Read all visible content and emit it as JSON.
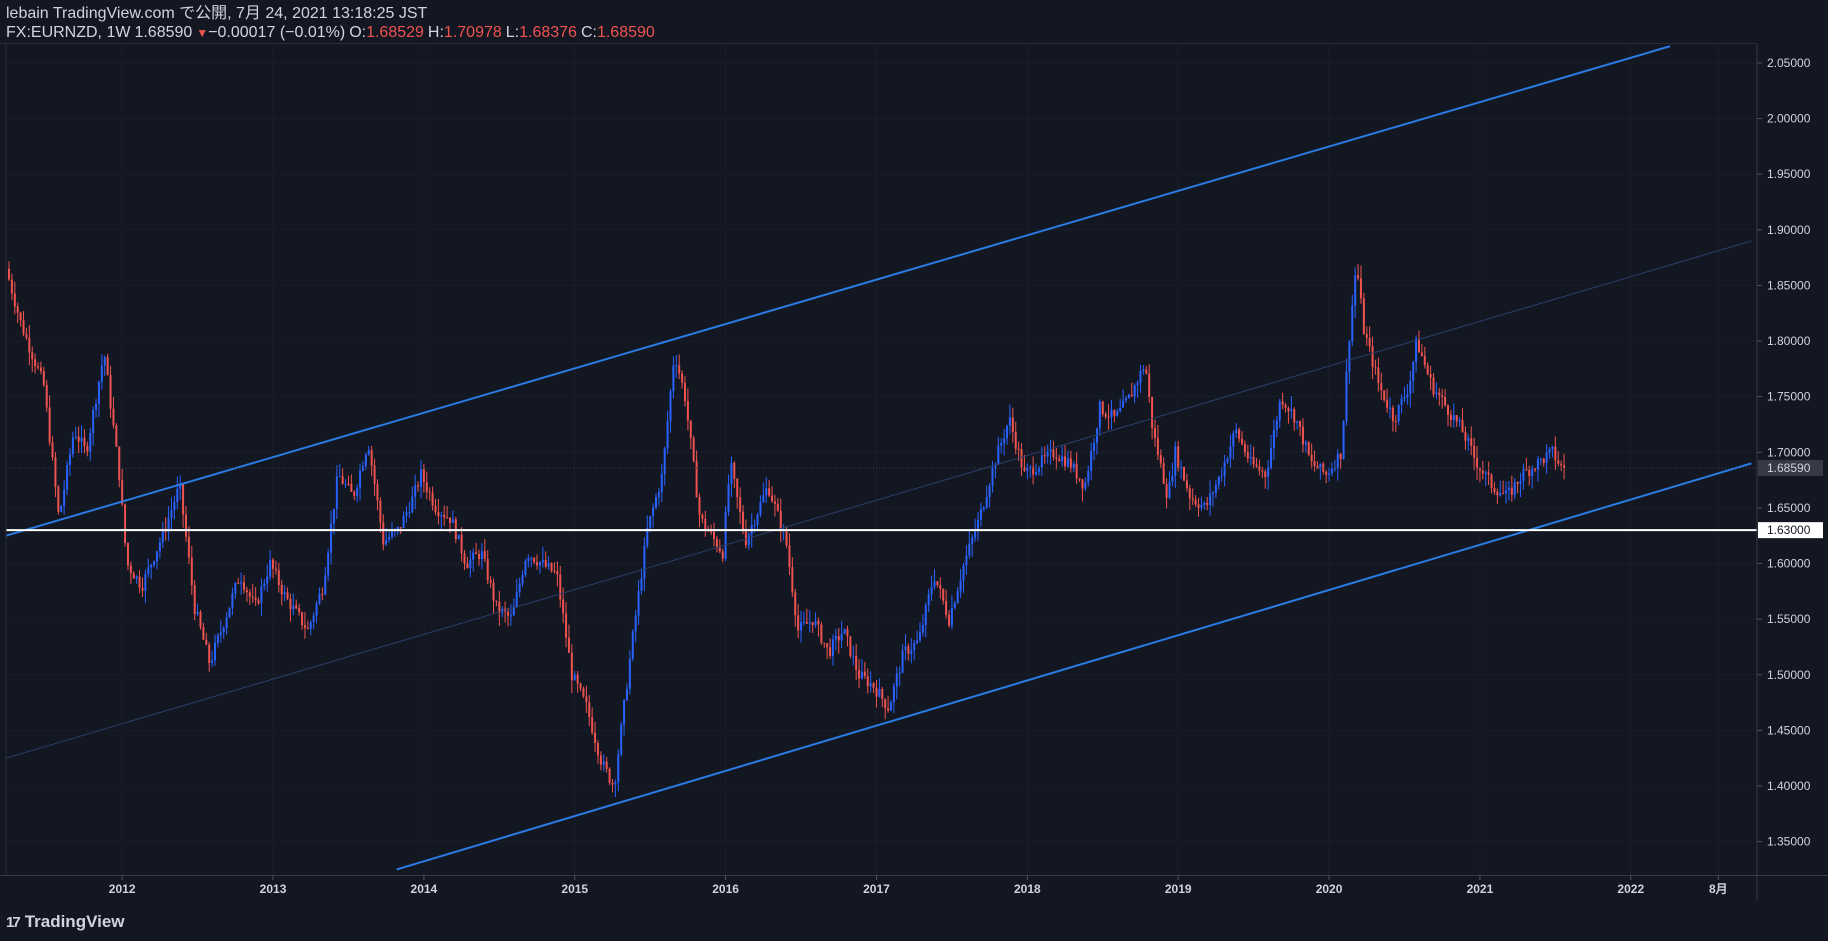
{
  "header": {
    "line1": "lebain TradingView.com で公開, 7月 24, 2021 13:18:25 JST",
    "symbol": "FX:EURNZD, 1W",
    "last": "1.68590",
    "arrow": "▼",
    "change": "−0.00017 (−0.01%)",
    "o_label": "O:",
    "o_value": "1.68529",
    "h_label": "H:",
    "h_value": "1.70978",
    "l_label": "L:",
    "l_value": "1.68376",
    "c_label": "C:",
    "c_value": "1.68590"
  },
  "brand": {
    "logo": "17",
    "name": "TradingView"
  },
  "colors": {
    "background": "#131722",
    "up": "#2962ff",
    "down": "#ef5350",
    "channel": "#2a7be4",
    "level": "#ffffff"
  },
  "chart_data": {
    "type": "candlestick",
    "symbol": "FX:EURNZD",
    "interval": "1W",
    "ylim": [
      1.32,
      2.067
    ],
    "y_ticks": [
      "1.35000",
      "1.40000",
      "1.45000",
      "1.50000",
      "1.55000",
      "1.60000",
      "1.65000",
      "1.70000",
      "1.75000",
      "1.80000",
      "1.85000",
      "1.90000",
      "1.95000",
      "2.00000",
      "2.05000"
    ],
    "x_ticks": [
      "2012",
      "2013",
      "2014",
      "2015",
      "2016",
      "2017",
      "2018",
      "2019",
      "2020",
      "2021",
      "2022",
      "8月"
    ],
    "x_tick_values": [
      2012.0,
      2013.0,
      2014.0,
      2015.0,
      2016.0,
      2017.0,
      2018.0,
      2019.0,
      2020.0,
      2021.0,
      2022.0,
      2022.58
    ],
    "xlim": [
      2011.23,
      2022.83
    ],
    "last_price": {
      "value": 1.6859,
      "label": "1.68590"
    },
    "horizontal_level": {
      "value": 1.63,
      "label": "1.63000"
    },
    "channel_lines": [
      {
        "points": [
          [
            2011.23,
            1.625
          ],
          [
            2022.26,
            2.065
          ]
        ]
      },
      {
        "points": [
          [
            2013.82,
            1.325
          ],
          [
            2022.8,
            1.69
          ]
        ]
      },
      {
        "points": [
          [
            2011.23,
            1.425
          ],
          [
            2022.8,
            1.89
          ]
        ]
      }
    ],
    "price_path": [
      [
        2011.25,
        1.865
      ],
      [
        2011.35,
        1.815
      ],
      [
        2011.5,
        1.76
      ],
      [
        2011.6,
        1.64
      ],
      [
        2011.7,
        1.72
      ],
      [
        2011.78,
        1.7
      ],
      [
        2011.9,
        1.79
      ],
      [
        2012.0,
        1.68
      ],
      [
        2012.05,
        1.6
      ],
      [
        2012.15,
        1.58
      ],
      [
        2012.3,
        1.63
      ],
      [
        2012.4,
        1.67
      ],
      [
        2012.5,
        1.56
      ],
      [
        2012.6,
        1.51
      ],
      [
        2012.7,
        1.55
      ],
      [
        2012.8,
        1.59
      ],
      [
        2012.9,
        1.56
      ],
      [
        2013.0,
        1.6
      ],
      [
        2013.1,
        1.57
      ],
      [
        2013.25,
        1.54
      ],
      [
        2013.35,
        1.58
      ],
      [
        2013.45,
        1.68
      ],
      [
        2013.55,
        1.66
      ],
      [
        2013.65,
        1.71
      ],
      [
        2013.75,
        1.62
      ],
      [
        2013.85,
        1.63
      ],
      [
        2013.95,
        1.66
      ],
      [
        2014.0,
        1.68
      ],
      [
        2014.1,
        1.65
      ],
      [
        2014.2,
        1.64
      ],
      [
        2014.3,
        1.6
      ],
      [
        2014.4,
        1.61
      ],
      [
        2014.5,
        1.56
      ],
      [
        2014.6,
        1.55
      ],
      [
        2014.7,
        1.61
      ],
      [
        2014.8,
        1.6
      ],
      [
        2014.9,
        1.59
      ],
      [
        2015.0,
        1.5
      ],
      [
        2015.1,
        1.47
      ],
      [
        2015.2,
        1.42
      ],
      [
        2015.28,
        1.4
      ],
      [
        2015.4,
        1.53
      ],
      [
        2015.5,
        1.63
      ],
      [
        2015.6,
        1.68
      ],
      [
        2015.68,
        1.79
      ],
      [
        2015.75,
        1.75
      ],
      [
        2015.85,
        1.64
      ],
      [
        2016.0,
        1.61
      ],
      [
        2016.05,
        1.69
      ],
      [
        2016.15,
        1.62
      ],
      [
        2016.3,
        1.67
      ],
      [
        2016.42,
        1.62
      ],
      [
        2016.5,
        1.54
      ],
      [
        2016.6,
        1.55
      ],
      [
        2016.7,
        1.52
      ],
      [
        2016.8,
        1.54
      ],
      [
        2016.9,
        1.5
      ],
      [
        2017.0,
        1.49
      ],
      [
        2017.1,
        1.47
      ],
      [
        2017.2,
        1.52
      ],
      [
        2017.3,
        1.53
      ],
      [
        2017.4,
        1.59
      ],
      [
        2017.5,
        1.55
      ],
      [
        2017.6,
        1.6
      ],
      [
        2017.7,
        1.64
      ],
      [
        2017.8,
        1.69
      ],
      [
        2017.9,
        1.73
      ],
      [
        2018.0,
        1.68
      ],
      [
        2018.1,
        1.69
      ],
      [
        2018.2,
        1.7
      ],
      [
        2018.3,
        1.69
      ],
      [
        2018.4,
        1.67
      ],
      [
        2018.5,
        1.74
      ],
      [
        2018.6,
        1.73
      ],
      [
        2018.7,
        1.75
      ],
      [
        2018.8,
        1.78
      ],
      [
        2018.85,
        1.72
      ],
      [
        2018.95,
        1.66
      ],
      [
        2019.0,
        1.7
      ],
      [
        2019.1,
        1.66
      ],
      [
        2019.2,
        1.65
      ],
      [
        2019.3,
        1.68
      ],
      [
        2019.4,
        1.72
      ],
      [
        2019.5,
        1.69
      ],
      [
        2019.6,
        1.68
      ],
      [
        2019.7,
        1.75
      ],
      [
        2019.8,
        1.73
      ],
      [
        2019.9,
        1.69
      ],
      [
        2020.0,
        1.68
      ],
      [
        2020.1,
        1.7
      ],
      [
        2020.15,
        1.8
      ],
      [
        2020.2,
        1.87
      ],
      [
        2020.25,
        1.81
      ],
      [
        2020.35,
        1.76
      ],
      [
        2020.45,
        1.73
      ],
      [
        2020.55,
        1.76
      ],
      [
        2020.6,
        1.8
      ],
      [
        2020.7,
        1.76
      ],
      [
        2020.8,
        1.74
      ],
      [
        2020.9,
        1.72
      ],
      [
        2021.0,
        1.69
      ],
      [
        2021.1,
        1.67
      ],
      [
        2021.2,
        1.66
      ],
      [
        2021.3,
        1.68
      ],
      [
        2021.4,
        1.69
      ],
      [
        2021.5,
        1.7
      ],
      [
        2021.56,
        1.6859
      ]
    ]
  }
}
